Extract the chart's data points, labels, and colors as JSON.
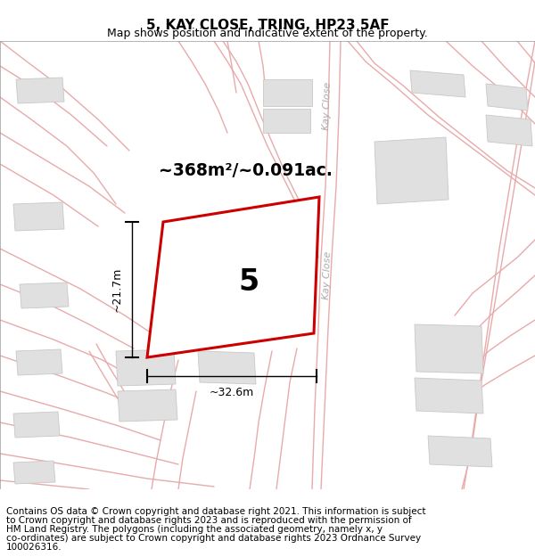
{
  "title": "5, KAY CLOSE, TRING, HP23 5AF",
  "subtitle": "Map shows position and indicative extent of the property.",
  "footer_line1": "Contains OS data © Crown copyright and database right 2021. This information is subject",
  "footer_line2": "to Crown copyright and database rights 2023 and is reproduced with the permission of",
  "footer_line3": "HM Land Registry. The polygons (including the associated geometry, namely x, y",
  "footer_line4": "co-ordinates) are subject to Crown copyright and database rights 2023 Ordnance Survey",
  "footer_line5": "100026316.",
  "bg_color": "#ffffff",
  "map_bg": "#ffffff",
  "road_color": "#e8aaaa",
  "plot_edge_color": "#cc0000",
  "plot_fill_color": "#ffffff",
  "building_fill": "#e0e0e0",
  "building_edge": "#c8c8c8",
  "plot_label": "5",
  "area_label": "~368m²/~0.091ac.",
  "dim_width": "~32.6m",
  "dim_height": "~21.7m",
  "road_label": "Kay Close",
  "title_fontsize": 11,
  "subtitle_fontsize": 9,
  "footer_fontsize": 7.5,
  "map_border_color": "#cccccc"
}
